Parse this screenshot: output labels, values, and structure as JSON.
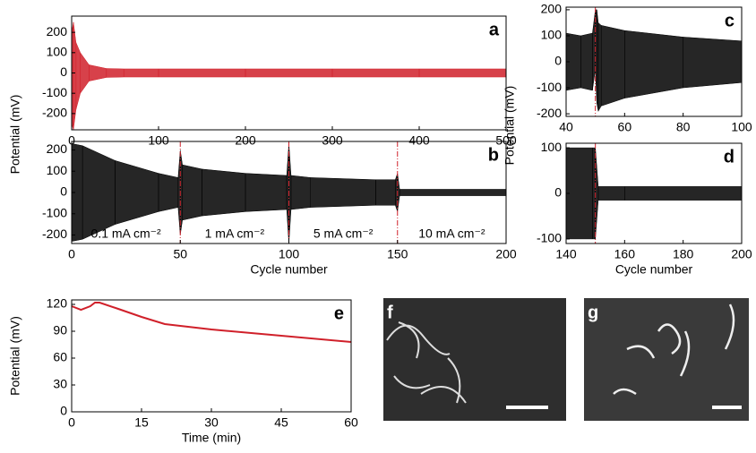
{
  "chart_data": [
    {
      "type": "area",
      "label": "a",
      "color": "#d0202a",
      "x": [
        0,
        2,
        5,
        10,
        20,
        40,
        60,
        100,
        200,
        300,
        400,
        500
      ],
      "high": [
        200,
        250,
        150,
        100,
        40,
        22,
        20,
        20,
        20,
        20,
        20,
        20
      ],
      "low": [
        -250,
        -280,
        -180,
        -100,
        -40,
        -22,
        -20,
        -20,
        -20,
        -20,
        -20,
        -20
      ],
      "xlim": [
        0,
        500
      ],
      "xticks": [
        0,
        100,
        200,
        300,
        400,
        500
      ],
      "ylim": [
        -280,
        280
      ],
      "yticks": [
        -200,
        -100,
        0,
        100,
        200
      ]
    },
    {
      "type": "area",
      "label": "b",
      "color": "#000000",
      "marker_color": "#d0202a",
      "x": [
        0,
        5,
        20,
        40,
        49,
        50,
        51,
        60,
        80,
        99,
        100,
        101,
        110,
        140,
        149,
        150,
        151,
        200
      ],
      "high": [
        230,
        220,
        150,
        90,
        70,
        200,
        130,
        110,
        90,
        80,
        230,
        80,
        70,
        60,
        60,
        90,
        15,
        15
      ],
      "low": [
        -230,
        -220,
        -150,
        -90,
        -70,
        -200,
        -130,
        -110,
        -90,
        -80,
        -240,
        -80,
        -70,
        -60,
        -60,
        -90,
        -15,
        -15
      ],
      "markers": [
        50,
        100,
        150
      ],
      "annotations": [
        "0.1 mA cm⁻²",
        "1 mA cm⁻²",
        "5 mA cm⁻²",
        "10 mA cm⁻²"
      ],
      "xlim": [
        0,
        200
      ],
      "xticks": [
        0,
        50,
        100,
        150,
        200
      ],
      "ylim": [
        -240,
        240
      ],
      "yticks": [
        -200,
        -100,
        0,
        100,
        200
      ],
      "xlabel": "Cycle number",
      "ylabel": "Potential (mV)"
    },
    {
      "type": "area",
      "label": "c",
      "color": "#000000",
      "marker_color": "#d0202a",
      "x": [
        40,
        45,
        49,
        50,
        50.5,
        51,
        52,
        60,
        80,
        100
      ],
      "high": [
        110,
        100,
        110,
        200,
        200,
        150,
        140,
        120,
        95,
        80
      ],
      "low": [
        -110,
        -100,
        -110,
        -30,
        -160,
        -190,
        -170,
        -140,
        -100,
        -80
      ],
      "markers": [
        50
      ],
      "xlim": [
        40,
        100
      ],
      "xticks": [
        40,
        60,
        80,
        100
      ],
      "ylim": [
        -210,
        210
      ],
      "yticks": [
        -200,
        -100,
        0,
        100,
        200
      ]
    },
    {
      "type": "area",
      "label": "d",
      "color": "#000000",
      "marker_color": "#d0202a",
      "x": [
        140,
        149,
        150,
        151,
        160,
        200
      ],
      "high": [
        100,
        100,
        100,
        15,
        15,
        15
      ],
      "low": [
        -100,
        -100,
        -100,
        -15,
        -15,
        -15
      ],
      "markers": [
        150
      ],
      "xlim": [
        140,
        200
      ],
      "xticks": [
        140,
        160,
        180,
        200
      ],
      "ylim": [
        -110,
        110
      ],
      "yticks": [
        -100,
        0,
        100
      ],
      "xlabel": "Cycle number",
      "ylabel": "Potential (mV)"
    },
    {
      "type": "line",
      "label": "e",
      "color": "#d0202a",
      "x": [
        0,
        2,
        4,
        5,
        6,
        10,
        15,
        20,
        30,
        45,
        60
      ],
      "values": [
        118,
        114,
        118,
        122,
        122,
        115,
        106,
        98,
        92,
        85,
        78
      ],
      "xlim": [
        0,
        60
      ],
      "xticks": [
        0,
        15,
        30,
        45,
        60
      ],
      "ylim": [
        0,
        125
      ],
      "yticks": [
        0,
        30,
        60,
        90,
        120
      ],
      "xlabel": "Time (min)",
      "ylabel": "Potential (mV)"
    }
  ],
  "images": [
    {
      "label": "f"
    },
    {
      "label": "g"
    }
  ]
}
